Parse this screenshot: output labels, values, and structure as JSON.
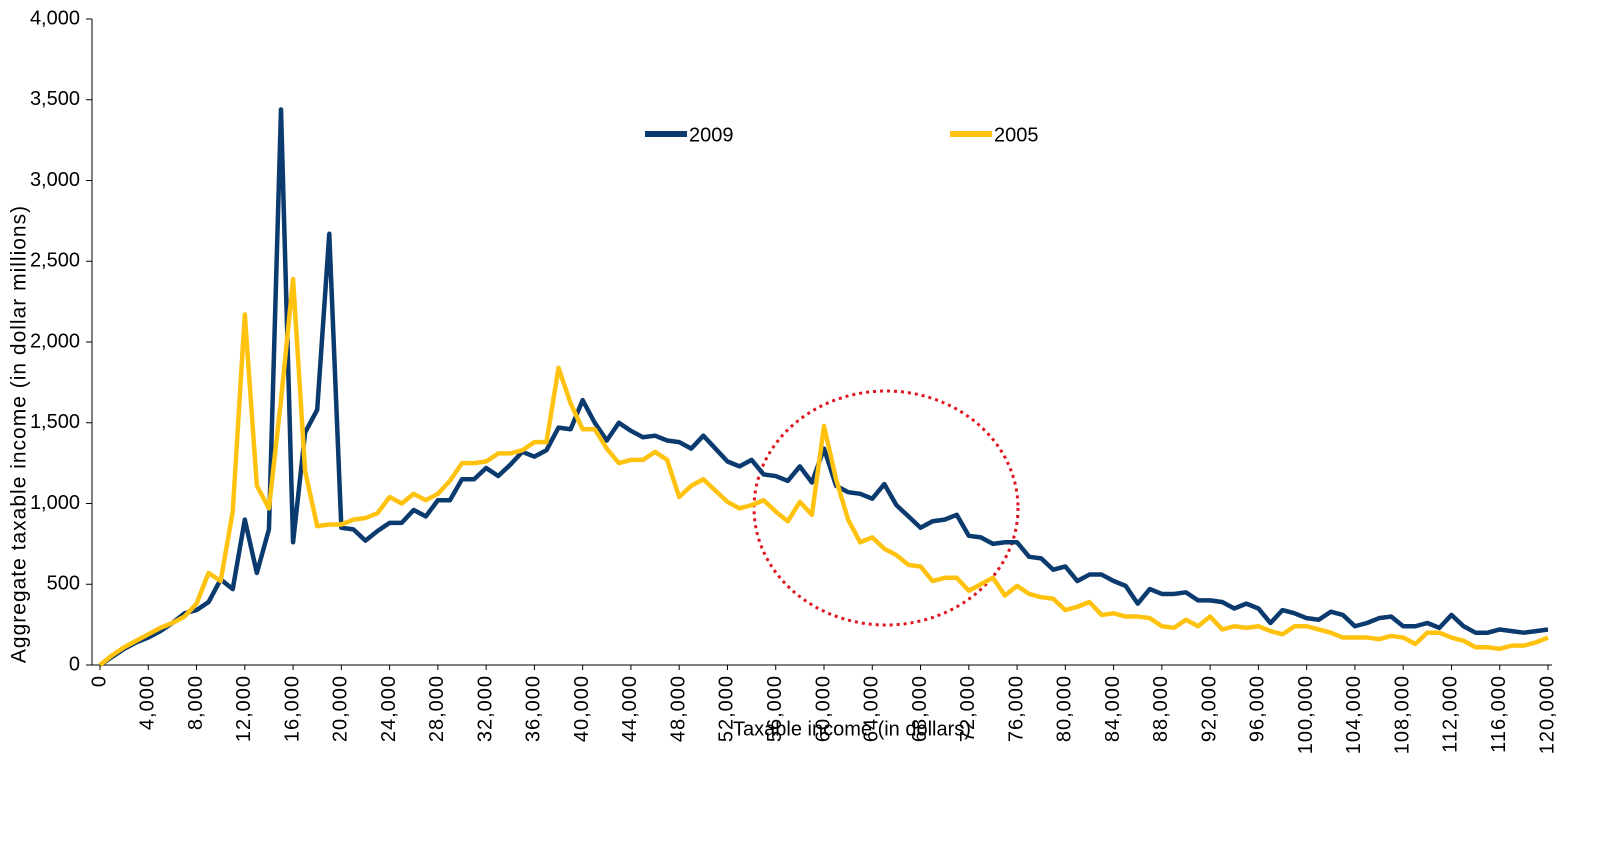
{
  "chart_data": {
    "type": "line",
    "xlabel": "Taxable income (in dollars)",
    "ylabel": "Aggregate taxable income (in dollar millions)",
    "x": [
      0,
      1000,
      2000,
      3000,
      4000,
      5000,
      6000,
      7000,
      8000,
      9000,
      10000,
      11000,
      12000,
      13000,
      14000,
      15000,
      16000,
      17000,
      18000,
      19000,
      20000,
      21000,
      22000,
      23000,
      24000,
      25000,
      26000,
      27000,
      28000,
      29000,
      30000,
      31000,
      32000,
      33000,
      34000,
      35000,
      36000,
      37000,
      38000,
      39000,
      40000,
      41000,
      42000,
      43000,
      44000,
      45000,
      46000,
      47000,
      48000,
      49000,
      50000,
      51000,
      52000,
      53000,
      54000,
      55000,
      56000,
      57000,
      58000,
      59000,
      60000,
      61000,
      62000,
      63000,
      64000,
      65000,
      66000,
      67000,
      68000,
      69000,
      70000,
      71000,
      72000,
      73000,
      74000,
      75000,
      76000,
      77000,
      78000,
      79000,
      80000,
      81000,
      82000,
      83000,
      84000,
      85000,
      86000,
      87000,
      88000,
      89000,
      90000,
      91000,
      92000,
      93000,
      94000,
      95000,
      96000,
      97000,
      98000,
      99000,
      100000,
      101000,
      102000,
      103000,
      104000,
      105000,
      106000,
      107000,
      108000,
      109000,
      110000,
      111000,
      112000,
      113000,
      114000,
      115000,
      116000,
      117000,
      118000,
      119000,
      120000
    ],
    "series": [
      {
        "name": "2009",
        "color": "#0b3a6e",
        "values": [
          0,
          50,
          100,
          140,
          170,
          210,
          260,
          320,
          340,
          390,
          530,
          470,
          900,
          570,
          840,
          3440,
          760,
          1440,
          1580,
          2670,
          850,
          840,
          770,
          830,
          880,
          880,
          960,
          920,
          1020,
          1020,
          1150,
          1150,
          1220,
          1170,
          1240,
          1320,
          1290,
          1330,
          1470,
          1460,
          1640,
          1500,
          1390,
          1500,
          1450,
          1410,
          1420,
          1390,
          1380,
          1340,
          1420,
          1340,
          1260,
          1230,
          1270,
          1180,
          1170,
          1140,
          1230,
          1130,
          1340,
          1110,
          1070,
          1060,
          1030,
          1120,
          990,
          920,
          850,
          890,
          900,
          930,
          800,
          790,
          750,
          760,
          760,
          670,
          660,
          590,
          610,
          520,
          560,
          560,
          520,
          490,
          380,
          470,
          440,
          440,
          450,
          400,
          400,
          390,
          350,
          380,
          350,
          260,
          340,
          320,
          290,
          280,
          330,
          310,
          240,
          260,
          290,
          300,
          240,
          240,
          260,
          230,
          310,
          240,
          200,
          200,
          220,
          210,
          200,
          210,
          220
        ]
      },
      {
        "name": "2005",
        "color": "#ffc20e",
        "values": [
          0,
          60,
          110,
          150,
          190,
          230,
          260,
          300,
          380,
          570,
          520,
          950,
          2170,
          1110,
          970,
          1640,
          2390,
          1200,
          860,
          870,
          870,
          900,
          910,
          940,
          1040,
          1000,
          1060,
          1020,
          1060,
          1140,
          1250,
          1250,
          1260,
          1310,
          1310,
          1330,
          1380,
          1380,
          1840,
          1620,
          1460,
          1460,
          1340,
          1250,
          1270,
          1270,
          1320,
          1270,
          1040,
          1110,
          1150,
          1080,
          1010,
          970,
          990,
          1020,
          950,
          890,
          1010,
          930,
          1480,
          1150,
          900,
          760,
          790,
          720,
          680,
          620,
          610,
          520,
          540,
          540,
          460,
          500,
          540,
          430,
          490,
          440,
          420,
          410,
          340,
          360,
          390,
          310,
          320,
          300,
          300,
          290,
          240,
          230,
          280,
          240,
          300,
          220,
          240,
          230,
          240,
          210,
          190,
          240,
          240,
          220,
          200,
          170,
          170,
          170,
          160,
          180,
          170,
          130,
          200,
          200,
          170,
          150,
          110,
          110,
          100,
          120,
          120,
          140,
          170
        ]
      }
    ],
    "xlim": [
      0,
      120000
    ],
    "xticks": [
      0,
      {
        "value": 4000,
        "label": "4,000"
      },
      {
        "value": 8000,
        "label": "8,000"
      },
      {
        "value": 12000,
        "label": "12,000"
      },
      {
        "value": 16000,
        "label": "16,000"
      },
      {
        "value": 20000,
        "label": "20,000"
      },
      {
        "value": 24000,
        "label": "24,000"
      },
      {
        "value": 28000,
        "label": "28,000"
      },
      {
        "value": 32000,
        "label": "32,000"
      },
      {
        "value": 36000,
        "label": "36,000"
      },
      {
        "value": 40000,
        "label": "40,000"
      },
      {
        "value": 44000,
        "label": "44,000"
      },
      {
        "value": 48000,
        "label": "48,000"
      },
      {
        "value": 52000,
        "label": "52,000"
      },
      {
        "value": 56000,
        "label": "56,000"
      },
      {
        "value": 60000,
        "label": "60,000"
      },
      {
        "value": 64000,
        "label": "64,000"
      },
      {
        "value": 68000,
        "label": "68,000"
      },
      {
        "value": 72000,
        "label": "72,000"
      },
      {
        "value": 76000,
        "label": "76,000"
      },
      {
        "value": 80000,
        "label": "80,000"
      },
      {
        "value": 84000,
        "label": "84,000"
      },
      {
        "value": 88000,
        "label": "88,000"
      },
      {
        "value": 92000,
        "label": "92,000"
      },
      {
        "value": 96000,
        "label": "96,000"
      },
      {
        "value": 100000,
        "label": "100,000"
      },
      {
        "value": 104000,
        "label": "104,000"
      },
      {
        "value": 108000,
        "label": "108,000"
      },
      {
        "value": 112000,
        "label": "112,000"
      },
      {
        "value": 116000,
        "label": "116,000"
      },
      {
        "value": 120000,
        "label": "120,000"
      }
    ],
    "ylim": [
      0,
      4000
    ],
    "yticks": [
      0,
      500,
      {
        "value": 1000,
        "label": "1,000"
      },
      {
        "value": 1500,
        "label": "1,500"
      },
      {
        "value": 2000,
        "label": "2,000"
      },
      {
        "value": 2500,
        "label": "2,500"
      },
      {
        "value": 3000,
        "label": "3,000"
      },
      {
        "value": 3500,
        "label": "3,500"
      },
      {
        "value": 4000,
        "label": "4,000"
      }
    ],
    "legend": "top"
  }
}
